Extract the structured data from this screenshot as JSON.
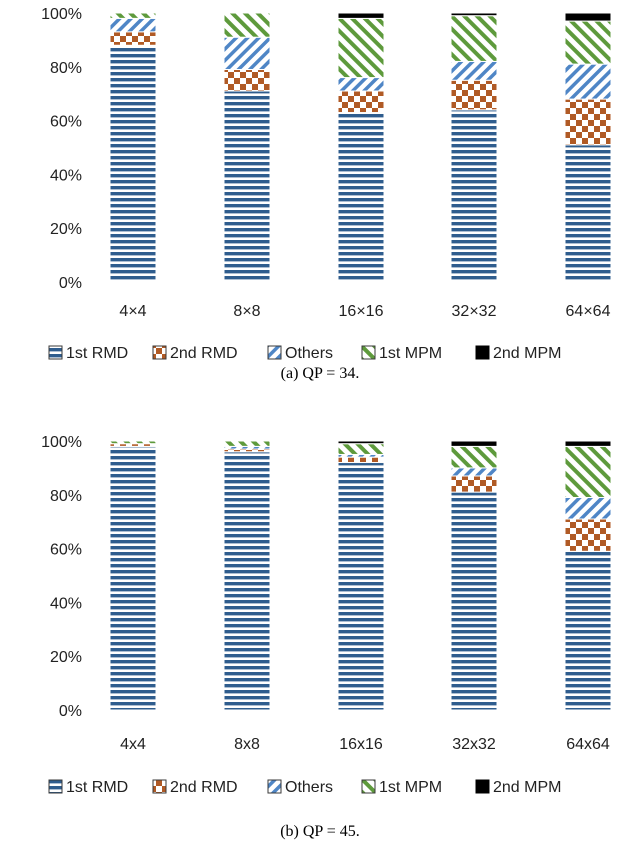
{
  "colors": {
    "1st RMD": "#2f5d8e",
    "2nd RMD": "#b05a25",
    "Others": "#4f86c6",
    "1st MPM": "#5e9a3c",
    "2nd MPM": "#000000"
  },
  "chart_data": [
    {
      "type": "bar",
      "stacked": true,
      "categories": [
        "4×4",
        "8×8",
        "16×16",
        "32×32",
        "64×64"
      ],
      "ylim": [
        0,
        100
      ],
      "yticks": [
        "0%",
        "20%",
        "40%",
        "60%",
        "80%",
        "100%"
      ],
      "grid": false,
      "legend": "bottom",
      "caption": "(a) QP = 34.",
      "series": [
        {
          "name": "1st RMD",
          "values": [
            88,
            71,
            63,
            64,
            51
          ]
        },
        {
          "name": "2nd RMD",
          "values": [
            5,
            8,
            8,
            11,
            17
          ]
        },
        {
          "name": "Others",
          "values": [
            5,
            12,
            5,
            7,
            13
          ]
        },
        {
          "name": "1st MPM",
          "values": [
            2,
            9,
            22,
            17,
            16
          ]
        },
        {
          "name": "2nd MPM",
          "values": [
            0,
            0,
            2,
            1,
            3
          ]
        }
      ]
    },
    {
      "type": "bar",
      "stacked": true,
      "categories": [
        "4x4",
        "8x8",
        "16x16",
        "32x32",
        "64x64"
      ],
      "ylim": [
        0,
        100
      ],
      "yticks": [
        "0%",
        "20%",
        "40%",
        "60%",
        "80%",
        "100%"
      ],
      "grid": false,
      "legend": "bottom",
      "caption": "(b) QP = 45.",
      "series": [
        {
          "name": "1st RMD",
          "values": [
            98,
            96,
            92,
            81,
            59
          ]
        },
        {
          "name": "2nd RMD",
          "values": [
            1,
            1,
            2,
            6,
            12
          ]
        },
        {
          "name": "Others",
          "values": [
            0,
            1,
            1,
            3,
            8
          ]
        },
        {
          "name": "1st MPM",
          "values": [
            1,
            2,
            4,
            8,
            19
          ]
        },
        {
          "name": "2nd MPM",
          "values": [
            0,
            0,
            1,
            2,
            2
          ]
        }
      ]
    }
  ]
}
